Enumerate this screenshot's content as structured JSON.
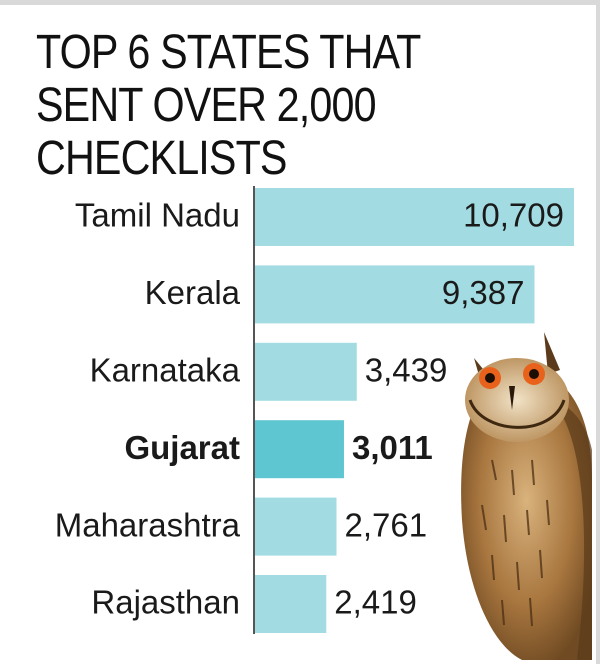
{
  "title_lines": [
    "TOP 6 STATES THAT",
    "SENT OVER 2,000",
    "CHECKLISTS"
  ],
  "chart_data": {
    "type": "bar",
    "orientation": "horizontal",
    "title": "TOP 6 STATES THAT SENT OVER 2,000 CHECKLISTS",
    "categories": [
      "Tamil Nadu",
      "Kerala",
      "Karnataka",
      "Gujarat",
      "Maharashtra",
      "Rajasthan"
    ],
    "values": [
      10709,
      9387,
      3439,
      3011,
      2761,
      2419
    ],
    "value_labels": [
      "10,709",
      "9,387",
      "3,439",
      "3,011",
      "2,761",
      "2,419"
    ],
    "highlight": "Gujarat",
    "xlim": [
      0,
      10709
    ],
    "grid": false,
    "legend": "none",
    "colors": {
      "bar": "#a2dce2",
      "highlight_bar": "#5ec6d0",
      "axis": "#555555",
      "text": "#1a1a1a"
    }
  },
  "illustration": {
    "icon": "owl-icon"
  }
}
